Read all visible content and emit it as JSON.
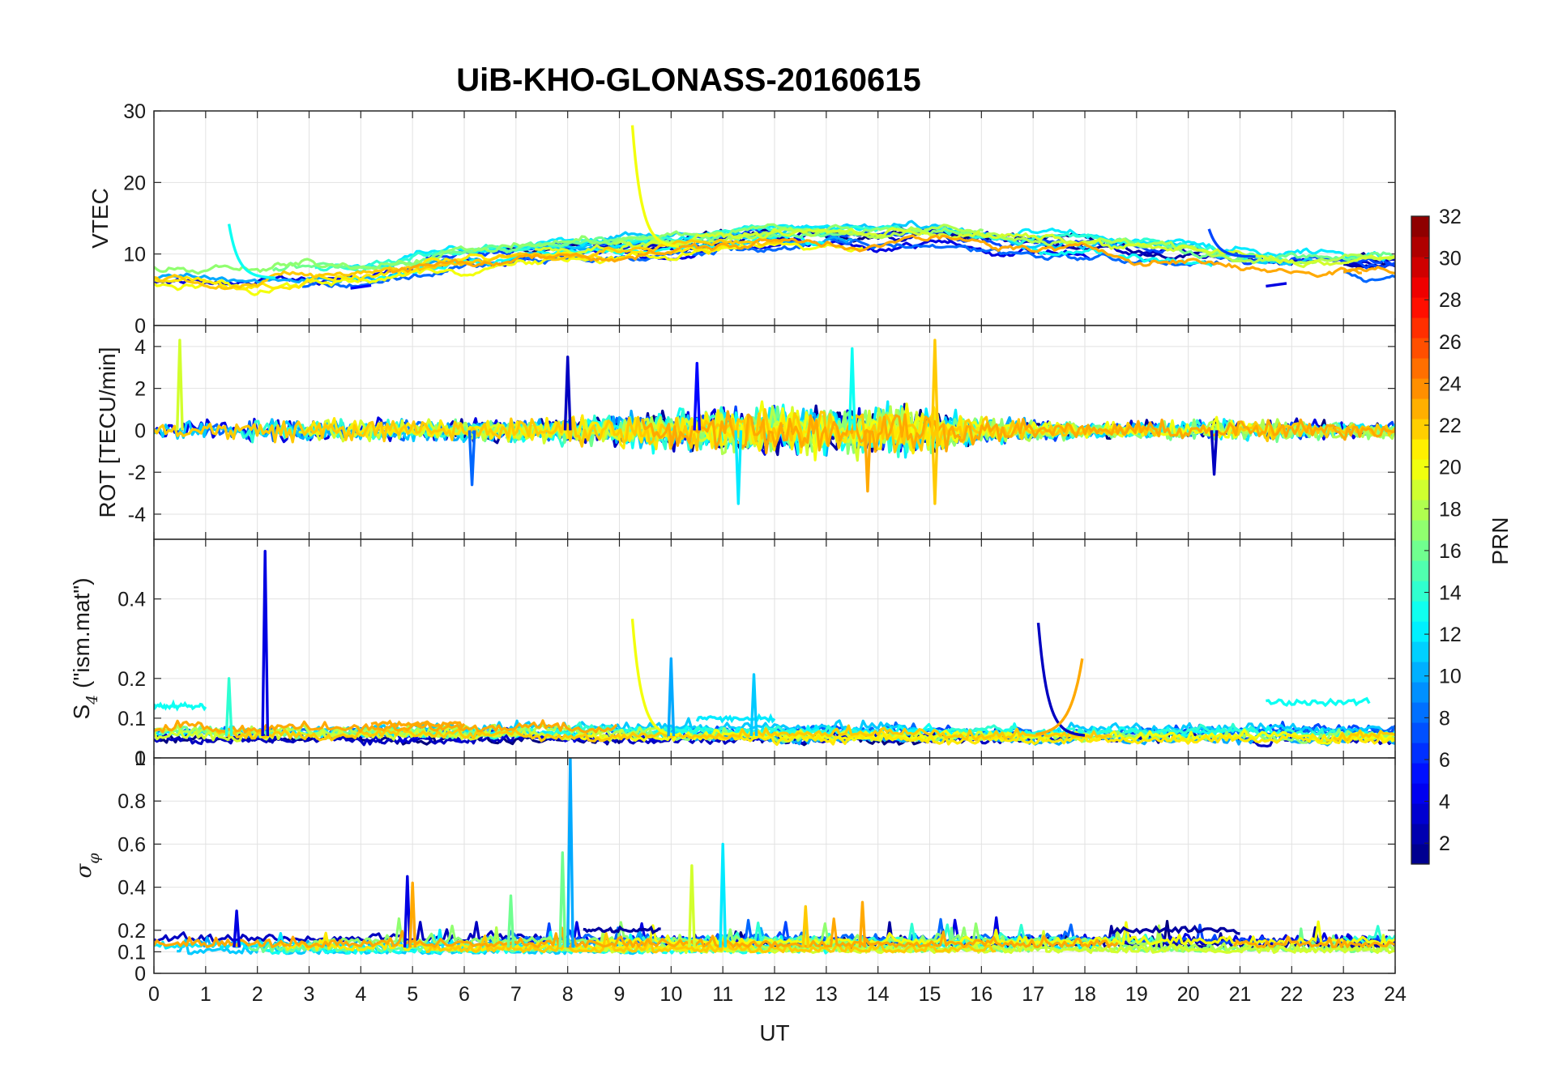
{
  "chart_data": {
    "type": "line",
    "title": "UiB-KHO-GLONASS-20160615",
    "xlabel": "UT",
    "xlim": [
      0,
      24
    ],
    "x_ticks": [
      "0",
      "1",
      "2",
      "3",
      "4",
      "5",
      "6",
      "7",
      "8",
      "9",
      "10",
      "11",
      "12",
      "13",
      "14",
      "15",
      "16",
      "17",
      "18",
      "19",
      "20",
      "21",
      "22",
      "23",
      "24"
    ],
    "grid": true,
    "panels": [
      {
        "id": "vtec",
        "ylabel": "VTEC",
        "ylim": [
          0,
          30
        ],
        "y_ticks": [
          0,
          10,
          20,
          30
        ],
        "y_tick_labels": [
          "0",
          "10",
          "20",
          "30"
        ],
        "baseline": 8,
        "noise": 0.5,
        "trend": [
          [
            0,
            7.2
          ],
          [
            2,
            6.4
          ],
          [
            3,
            7.2
          ],
          [
            4,
            7.5
          ],
          [
            6,
            9.5
          ],
          [
            8,
            10.5
          ],
          [
            10,
            11.2
          ],
          [
            12,
            12.5
          ],
          [
            14,
            12.4
          ],
          [
            15,
            12.8
          ],
          [
            16,
            12
          ],
          [
            18,
            11
          ],
          [
            20,
            10
          ],
          [
            21,
            9
          ],
          [
            22,
            8.5
          ],
          [
            24,
            8.5
          ]
        ],
        "spikes": [
          {
            "x": 9.25,
            "y": 28,
            "prn": 20,
            "kind": "decay"
          },
          {
            "x": 1.45,
            "y": 14.2,
            "prn": 13,
            "kind": "decay"
          },
          {
            "x": 20.4,
            "y": 13.5,
            "prn": 7,
            "kind": "decay"
          },
          {
            "x": 3.8,
            "y": 5.2,
            "prn": 5,
            "kind": "step"
          },
          {
            "x": 21.5,
            "y": 5.5,
            "prn": 4,
            "kind": "step"
          }
        ]
      },
      {
        "id": "rot",
        "ylabel": "ROT [TECU/min]",
        "ylim": [
          -5.2,
          5
        ],
        "y_ticks": [
          -4,
          -2,
          0,
          2,
          4
        ],
        "y_tick_labels": [
          "-4",
          "-2",
          "0",
          "2",
          "4"
        ],
        "baseline": 0,
        "noise": 0.35,
        "activity": [
          [
            0,
            1
          ],
          [
            3,
            1.3
          ],
          [
            4,
            1.2
          ],
          [
            6,
            1.2
          ],
          [
            8,
            1.5
          ],
          [
            10,
            2.0
          ],
          [
            11,
            2.4
          ],
          [
            12,
            2.4
          ],
          [
            13,
            2.6
          ],
          [
            14,
            2.6
          ],
          [
            15,
            2.3
          ],
          [
            16,
            1.3
          ],
          [
            18,
            0.8
          ],
          [
            21,
            1.2
          ],
          [
            24,
            0.8
          ]
        ],
        "spikes": [
          {
            "x": 0.5,
            "y": 4.3,
            "prn": 19
          },
          {
            "x": 8.0,
            "y": 3.5,
            "prn": 3
          },
          {
            "x": 10.5,
            "y": 3.2,
            "prn": 5
          },
          {
            "x": 13.5,
            "y": 3.9,
            "prn": 13
          },
          {
            "x": 15.1,
            "y": 4.3,
            "prn": 22
          },
          {
            "x": 15.1,
            "y": -3.5,
            "prn": 22
          },
          {
            "x": 11.3,
            "y": -3.5,
            "prn": 12
          },
          {
            "x": 13.8,
            "y": -2.9,
            "prn": 23
          },
          {
            "x": 6.15,
            "y": -2.6,
            "prn": 8
          },
          {
            "x": 20.5,
            "y": -2.1,
            "prn": 3
          }
        ]
      },
      {
        "id": "s4",
        "ylabel_main": "S",
        "ylabel_sub": "4",
        "ylabel_rest": " (\"ism.mat\")",
        "ylim": [
          0,
          0.55
        ],
        "y_ticks": [
          0,
          0.1,
          0.2,
          0.4
        ],
        "y_tick_labels": [
          "0",
          "0.1",
          "0.2",
          "0.4"
        ],
        "baseline": 0.055,
        "noise": 0.015,
        "spikes": [
          {
            "x": 2.15,
            "y": 0.52,
            "prn": 4,
            "kind": "sharp"
          },
          {
            "x": 17.1,
            "y": 0.34,
            "prn": 3,
            "kind": "decay"
          },
          {
            "x": 9.25,
            "y": 0.35,
            "prn": 20,
            "kind": "decay"
          },
          {
            "x": 10.0,
            "y": 0.25,
            "prn": 10,
            "kind": "sharp"
          },
          {
            "x": 11.6,
            "y": 0.21,
            "prn": 11,
            "kind": "sharp"
          },
          {
            "x": 17.95,
            "y": 0.25,
            "prn": 23,
            "kind": "rise"
          },
          {
            "x": 1.45,
            "y": 0.2,
            "prn": 14,
            "kind": "sharp"
          }
        ],
        "plateaus": [
          {
            "x0": 0.0,
            "x1": 1.0,
            "y": 0.13,
            "prn": 13
          },
          {
            "x0": 21.5,
            "x1": 23.5,
            "y": 0.14,
            "prn": 13
          },
          {
            "x0": 10.5,
            "x1": 12.0,
            "y": 0.1,
            "prn": 12
          },
          {
            "x0": 4.2,
            "x1": 6.0,
            "y": 0.085,
            "prn": 23
          }
        ]
      },
      {
        "id": "sigma",
        "ylabel_main": "σ",
        "ylabel_sub": "φ",
        "ylim": [
          0,
          1
        ],
        "y_ticks": [
          0,
          0.1,
          0.2,
          0.4,
          0.6,
          0.8,
          1
        ],
        "y_tick_labels": [
          "0",
          "0.1",
          "0.2",
          "0.4",
          "0.6",
          "0.8",
          "1"
        ],
        "baseline": 0.12,
        "noise": 0.03,
        "spikes": [
          {
            "x": 8.05,
            "y": 1.0,
            "prn": 10
          },
          {
            "x": 11.0,
            "y": 0.6,
            "prn": 12
          },
          {
            "x": 7.9,
            "y": 0.56,
            "prn": 16
          },
          {
            "x": 10.4,
            "y": 0.5,
            "prn": 19
          },
          {
            "x": 4.9,
            "y": 0.45,
            "prn": 4
          },
          {
            "x": 5.0,
            "y": 0.42,
            "prn": 23
          },
          {
            "x": 6.9,
            "y": 0.36,
            "prn": 16
          },
          {
            "x": 1.6,
            "y": 0.29,
            "prn": 4
          },
          {
            "x": 13.7,
            "y": 0.33,
            "prn": 23
          },
          {
            "x": 12.6,
            "y": 0.31,
            "prn": 22
          }
        ],
        "elevated": [
          {
            "x0": 8.3,
            "x1": 9.8,
            "y": 0.2,
            "prn": 2
          },
          {
            "x0": 18.5,
            "x1": 21.0,
            "y": 0.2,
            "prn": 2
          }
        ]
      }
    ],
    "colorbar": {
      "label": "PRN",
      "range": [
        1,
        32
      ],
      "ticks": [
        2,
        4,
        6,
        8,
        10,
        12,
        14,
        16,
        18,
        20,
        22,
        24,
        26,
        28,
        30,
        32
      ],
      "tick_labels": [
        "2",
        "4",
        "6",
        "8",
        "10",
        "12",
        "14",
        "16",
        "18",
        "20",
        "22",
        "24",
        "26",
        "28",
        "30",
        "32"
      ],
      "colormap": "jet"
    },
    "series_prns": [
      1,
      2,
      3,
      4,
      7,
      8,
      10,
      11,
      12,
      13,
      14,
      16,
      17,
      18,
      19,
      20,
      21,
      22,
      23
    ]
  }
}
